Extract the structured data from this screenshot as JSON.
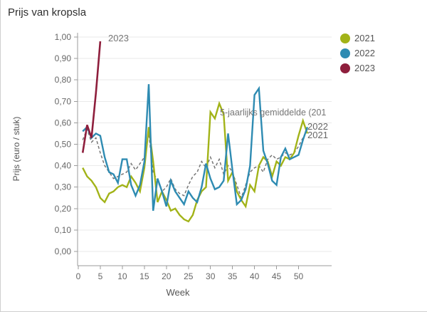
{
  "title": "Prijs van kropsla",
  "legend": {
    "items": [
      "2021",
      "2022",
      "2023"
    ]
  },
  "annotations": {
    "label_2023": "2023",
    "mean_label": "5-jaarlijks gemiddelde (201",
    "end_2022": "2022",
    "end_2021": "2021"
  },
  "chart_data": {
    "type": "line",
    "title": "Prijs van kropsla",
    "xlabel": "Week",
    "ylabel": "Prijs (euro / stuk)",
    "xlim": [
      0,
      57.5
    ],
    "ylim": [
      0,
      1.0
    ],
    "grid": "horizontal-only",
    "legend_position": "top-right",
    "x_ticks": [
      0,
      5,
      10,
      15,
      20,
      25,
      30,
      35,
      40,
      45,
      50
    ],
    "y_ticks": [
      {
        "value": 0.0,
        "label": "0,00"
      },
      {
        "value": 0.1,
        "label": "0,10"
      },
      {
        "value": 0.2,
        "label": "0,20"
      },
      {
        "value": 0.3,
        "label": "0,30"
      },
      {
        "value": 0.4,
        "label": "0,40"
      },
      {
        "value": 0.5,
        "label": "0,50"
      },
      {
        "value": 0.6,
        "label": "0,60"
      },
      {
        "value": 0.7,
        "label": "0,70"
      },
      {
        "value": 0.8,
        "label": "0,80"
      },
      {
        "value": 0.9,
        "label": "0,90"
      },
      {
        "value": 1.0,
        "label": "1,00"
      }
    ],
    "series": [
      {
        "name": "2021",
        "color": "#a2b318",
        "width": 2.4,
        "z": 1,
        "legend": true,
        "start_week": 1,
        "values": [
          0.39,
          0.35,
          0.33,
          0.3,
          0.25,
          0.23,
          0.27,
          0.28,
          0.3,
          0.31,
          0.3,
          0.35,
          0.32,
          0.28,
          0.39,
          0.58,
          0.42,
          0.23,
          0.28,
          0.24,
          0.19,
          0.2,
          0.17,
          0.15,
          0.14,
          0.17,
          0.24,
          0.28,
          0.3,
          0.65,
          0.62,
          0.69,
          0.64,
          0.33,
          0.37,
          0.28,
          0.24,
          0.21,
          0.31,
          0.28,
          0.4,
          0.44,
          0.42,
          0.35,
          0.42,
          0.4,
          0.44,
          0.43,
          0.46,
          0.54,
          0.61,
          0.55
        ]
      },
      {
        "name": "2022",
        "color": "#2e8bb2",
        "width": 2.4,
        "z": 2,
        "legend": true,
        "start_week": 1,
        "values": [
          0.56,
          0.58,
          0.53,
          0.55,
          0.54,
          0.44,
          0.37,
          0.36,
          0.32,
          0.43,
          0.43,
          0.31,
          0.26,
          0.31,
          0.42,
          0.78,
          0.19,
          0.34,
          0.28,
          0.21,
          0.33,
          0.28,
          0.25,
          0.22,
          0.28,
          0.25,
          0.23,
          0.3,
          0.41,
          0.34,
          0.29,
          0.3,
          0.33,
          0.55,
          0.38,
          0.22,
          0.24,
          0.29,
          0.4,
          0.73,
          0.76,
          0.47,
          0.41,
          0.33,
          0.31,
          0.44,
          0.48,
          0.43,
          0.44,
          0.45,
          0.52,
          0.58
        ]
      },
      {
        "name": "2023",
        "color": "#8e1e3c",
        "width": 2.6,
        "z": 3,
        "legend": true,
        "start_week": 1,
        "values": [
          0.46,
          0.59,
          0.53,
          0.74,
          0.98
        ]
      },
      {
        "name": "5-jaarlijks gemiddelde",
        "color": "#767676",
        "width": 1.5,
        "z": 0,
        "legend": false,
        "dash": "4 3",
        "start_week": 1,
        "values": [
          0.52,
          0.57,
          0.51,
          0.53,
          0.46,
          0.4,
          0.37,
          0.34,
          0.35,
          0.36,
          0.37,
          0.41,
          0.38,
          0.41,
          0.44,
          0.55,
          0.37,
          0.33,
          0.28,
          0.3,
          0.34,
          0.29,
          0.27,
          0.26,
          0.31,
          0.35,
          0.37,
          0.42,
          0.39,
          0.44,
          0.39,
          0.43,
          0.36,
          0.4,
          0.37,
          0.31,
          0.25,
          0.31,
          0.37,
          0.39,
          0.4,
          0.37,
          0.43,
          0.45,
          0.43,
          0.44,
          0.46,
          0.45,
          0.46,
          0.49,
          0.53,
          0.57
        ]
      }
    ]
  }
}
